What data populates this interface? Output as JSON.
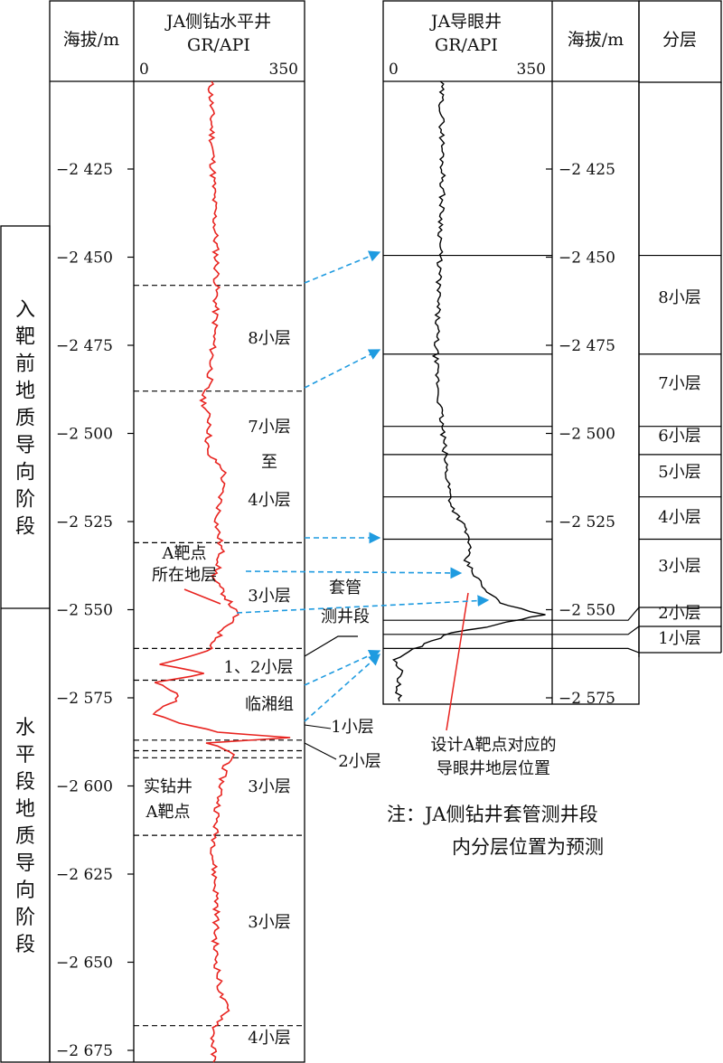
{
  "left_panel": {
    "elev_header": "海拔/m",
    "gr_title": "JA侧钻水平井",
    "gr_subtitle": "GR/API",
    "gr_min": "0",
    "gr_max": "350",
    "ticks": [
      "−2 425",
      "−2 450",
      "−2 475",
      "−2 500",
      "−2 525",
      "−2 550",
      "−2 575",
      "−2 600",
      "−2 625",
      "−2 650",
      "−2 675"
    ],
    "stages": [
      {
        "label": "入靶前地质导向阶段",
        "top": -2443,
        "bottom": -2552
      },
      {
        "label": "水平段地质导向阶段",
        "top": -2552,
        "bottom": -2680
      }
    ],
    "boundaries": [
      -2458,
      -2488,
      -2531,
      -2561,
      -2570,
      -2587,
      -2590,
      -2592,
      -2614,
      -2668
    ],
    "layer_labels": [
      {
        "id": "l8",
        "text": "8小层"
      },
      {
        "id": "l7a",
        "text": "7小层"
      },
      {
        "id": "l7b",
        "text": "至"
      },
      {
        "id": "l7c",
        "text": "4小层"
      },
      {
        "id": "l3a",
        "text": "3小层"
      },
      {
        "id": "l12",
        "text": "1、2小层"
      },
      {
        "id": "llx",
        "text": "临湘组"
      },
      {
        "id": "l3b",
        "text": "3小层"
      },
      {
        "id": "l3c",
        "text": "3小层"
      },
      {
        "id": "l4",
        "text": "4小层"
      }
    ]
  },
  "right_panel": {
    "gr_title": "JA导眼井",
    "gr_subtitle": "GR/API",
    "gr_min": "0",
    "gr_max": "350",
    "elev_header": "海拔/m",
    "layer_header": "分层",
    "ticks": [
      "−2 425",
      "−2 450",
      "−2 475",
      "−2 500",
      "−2 525",
      "−2 550",
      "−2 575"
    ],
    "boundaries": [
      -2449.5,
      -2477.5,
      -2498,
      -2506,
      -2518,
      -2530,
      -2553,
      -2557,
      -2561
    ],
    "layers": [
      "8小层",
      "7小层",
      "6小层",
      "5小层",
      "4小层",
      "3小层",
      "2小层",
      "1小层"
    ]
  },
  "annotations": {
    "target_formation_line1": "A靶点",
    "target_formation_line2": "所在地层",
    "casing_line1": "套管",
    "casing_line2": "测井段",
    "side_label_1": "1小层",
    "side_label_2": "2小层",
    "actual_line1": "实钻井",
    "actual_line2": "A靶点",
    "design_line1": "设计A靶点对应的",
    "design_line2": "导眼井地层位置",
    "note_line1": "注：JA侧钻井套管测井段",
    "note_line2": "内分层位置为预测"
  },
  "colors": {
    "horizontal_gr": "#e8231f",
    "pilot_gr": "#000000",
    "arrow": "#1f9be0",
    "design_line": "#e8231f",
    "grid": "#000000"
  }
}
